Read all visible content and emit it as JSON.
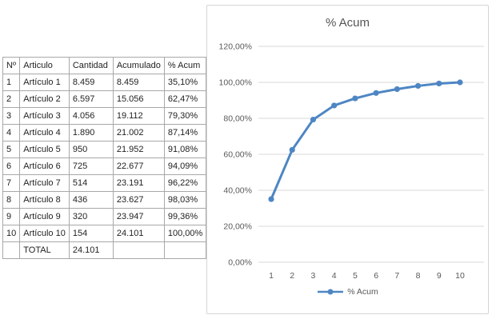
{
  "table": {
    "columns": {
      "n": "Nº",
      "articulo": "Articulo",
      "cantidad": "Cantidad",
      "acumulado": "Acumulado",
      "pct": "% Acum"
    },
    "rows": [
      {
        "n": "1",
        "articulo": "Artículo 1",
        "cantidad": "8.459",
        "acumulado": "8.459",
        "pct": "35,10%",
        "pct_highlight": false,
        "acumulado_bold": false
      },
      {
        "n": "2",
        "articulo": "Artículo 2",
        "cantidad": "6.597",
        "acumulado": "15.056",
        "pct": "62,47%",
        "pct_highlight": false,
        "acumulado_bold": false
      },
      {
        "n": "3",
        "articulo": "Artículo 3",
        "cantidad": "4.056",
        "acumulado": "19.112",
        "pct": "79,30%",
        "pct_highlight": false,
        "acumulado_bold": false
      },
      {
        "n": "4",
        "articulo": "Artículo 4",
        "cantidad": "1.890",
        "acumulado": "21.002",
        "pct": "87,14%",
        "pct_highlight": false,
        "acumulado_bold": false
      },
      {
        "n": "5",
        "articulo": "Artículo 5",
        "cantidad": "950",
        "acumulado": "21.952",
        "pct": "91,08%",
        "pct_highlight": true,
        "acumulado_bold": false
      },
      {
        "n": "6",
        "articulo": "Artículo 6",
        "cantidad": "725",
        "acumulado": "22.677",
        "pct": "94,09%",
        "pct_highlight": false,
        "acumulado_bold": false
      },
      {
        "n": "7",
        "articulo": "Artículo 7",
        "cantidad": "514",
        "acumulado": "23.191",
        "pct": "96,22%",
        "pct_highlight": false,
        "acumulado_bold": false
      },
      {
        "n": "8",
        "articulo": "Artículo 8",
        "cantidad": "436",
        "acumulado": "23.627",
        "pct": "98,03%",
        "pct_highlight": false,
        "acumulado_bold": false
      },
      {
        "n": "9",
        "articulo": "Artículo 9",
        "cantidad": "320",
        "acumulado": "23.947",
        "pct": "99,36%",
        "pct_highlight": false,
        "acumulado_bold": false
      },
      {
        "n": "10",
        "articulo": "Artículo 10",
        "cantidad": "154",
        "acumulado": "24.101",
        "pct": "100,00%",
        "pct_highlight": true,
        "acumulado_bold": true
      }
    ],
    "total_row": {
      "label": "TOTAL",
      "cantidad": "24.101"
    }
  },
  "chart_data": {
    "type": "line",
    "title": "% Acum",
    "categories": [
      "1",
      "2",
      "3",
      "4",
      "5",
      "6",
      "7",
      "8",
      "9",
      "10"
    ],
    "series": [
      {
        "name": "% Acum",
        "values": [
          35.1,
          62.47,
          79.3,
          87.14,
          91.08,
          94.09,
          96.22,
          98.03,
          99.36,
          100.0
        ]
      }
    ],
    "xlabel": "",
    "ylabel": "",
    "ylim": [
      0,
      120
    ],
    "y_tick_step": 20,
    "y_tick_labels": [
      "0,00%",
      "20,00%",
      "40,00%",
      "60,00%",
      "80,00%",
      "100,00%",
      "120,00%"
    ],
    "grid": true,
    "legend_position": "bottom",
    "legend_label": "% Acum"
  },
  "colors": {
    "line": "#4e86c4",
    "marker": "#4e86c4",
    "gridline": "#d9d9d9",
    "axis_text": "#595959",
    "header_yellow": "#ffff9c",
    "body_yellow": "#ffffb9",
    "cell_gray": "#f3f3f3",
    "table_border": "#a8a8a8"
  }
}
